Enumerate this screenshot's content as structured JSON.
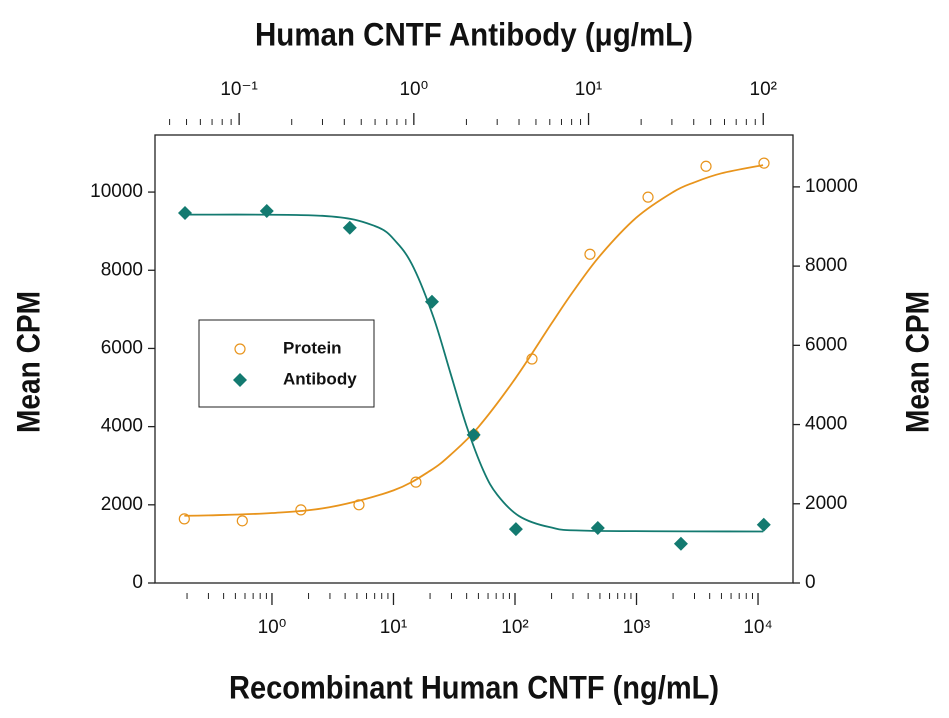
{
  "chart_data": {
    "type": "scatter",
    "xlabel": "Recombinant Human CNTF (ng/mL)",
    "x2label": "Human CNTF Antibody (μg/mL)",
    "ylabel": "Mean CPM",
    "y2label": "Mean CPM",
    "xscale": "log",
    "x2scale": "log",
    "legend": "center left",
    "xlim": [
      0.109,
      19400
    ],
    "xticks": [
      {
        "value": 1,
        "label": "10⁰"
      },
      {
        "value": 10,
        "label": "10¹"
      },
      {
        "value": 100,
        "label": "10²"
      },
      {
        "value": 1000,
        "label": "10³"
      },
      {
        "value": 10000,
        "label": "10⁴"
      }
    ],
    "xminorticks": [
      0.2,
      0.3,
      0.4,
      0.5,
      0.6,
      0.7,
      0.8,
      0.9,
      2,
      3,
      4,
      5,
      6,
      7,
      8,
      9,
      20,
      30,
      40,
      50,
      60,
      70,
      80,
      90,
      200,
      300,
      400,
      500,
      600,
      700,
      800,
      900,
      2000,
      3000,
      4000,
      5000,
      6000,
      7000,
      8000,
      9000
    ],
    "x2lim": [
      0.033,
      148
    ],
    "x2ticks": [
      {
        "value": 0.1,
        "label": "10⁻¹"
      },
      {
        "value": 1,
        "label": "10⁰"
      },
      {
        "value": 10,
        "label": "10¹"
      },
      {
        "value": 100,
        "label": "10²"
      }
    ],
    "x2minorticks": [
      0.04,
      0.05,
      0.06,
      0.07,
      0.08,
      0.09,
      0.2,
      0.3,
      0.4,
      0.5,
      0.6,
      0.7,
      0.8,
      0.9,
      2,
      3,
      4,
      5,
      6,
      7,
      8,
      9,
      20,
      30,
      40,
      50,
      60,
      70,
      80,
      90
    ],
    "ylim": [
      0,
      11460
    ],
    "yticks": [
      0,
      2000,
      4000,
      6000,
      8000,
      10000
    ],
    "y2lim": [
      0,
      11310
    ],
    "y2ticks": [
      0,
      2000,
      4000,
      6000,
      8000,
      10000
    ],
    "series": [
      {
        "name": "Protein",
        "color": "#e8941c",
        "marker": "circle",
        "x": [
          0.19,
          0.57,
          1.73,
          5.2,
          15.3,
          46,
          138,
          414,
          1244,
          3733,
          11200
        ],
        "values": [
          1640,
          1590,
          1870,
          2000,
          2580,
          3790,
          5730,
          8410,
          9870,
          10660,
          10740
        ],
        "curve_x": [
          0.19,
          0.3,
          1,
          3,
          10,
          20,
          30,
          50,
          100,
          200,
          300,
          500,
          1000,
          2000,
          3000,
          5000,
          11000
        ],
        "curve_values": [
          1720,
          1730,
          1790,
          1940,
          2370,
          2870,
          3300,
          3990,
          5220,
          6640,
          7450,
          8370,
          9350,
          10000,
          10250,
          10480,
          10690
        ]
      },
      {
        "name": "Antibody",
        "color": "#137a70",
        "marker": "diamond",
        "axis": "y2",
        "x_axis": "x2",
        "x": [
          0.049,
          0.144,
          0.43,
          1.27,
          2.2,
          3.84,
          11.3,
          33.8,
          100.7
        ],
        "values": [
          9340,
          9390,
          8970,
          7100,
          3740,
          1360,
          1390,
          990,
          1470
        ],
        "curve_x": [
          0.05,
          0.3,
          0.6,
          0.8,
          1.0,
          1.3,
          1.62,
          2,
          2.5,
          3,
          4,
          6,
          10,
          100
        ],
        "curve_values": [
          9300,
          9270,
          9010,
          8590,
          7950,
          6690,
          5300,
          3970,
          2840,
          2230,
          1690,
          1410,
          1320,
          1300
        ]
      }
    ]
  }
}
